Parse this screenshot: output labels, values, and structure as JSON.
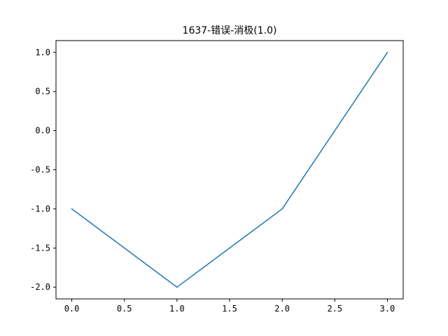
{
  "chart_data": {
    "type": "line",
    "title": "1637-错误-消极(1.0)",
    "xlabel": "",
    "ylabel": "",
    "x": [
      0,
      1,
      2,
      3
    ],
    "series": [
      {
        "values": [
          -1,
          -2,
          -1,
          1
        ],
        "color": "#1f77b4"
      }
    ],
    "xlim": [
      -0.15,
      3.15
    ],
    "ylim": [
      -2.15,
      1.15
    ],
    "x_ticks": [
      0.0,
      0.5,
      1.0,
      1.5,
      2.0,
      2.5,
      3.0
    ],
    "x_tick_labels": [
      "0.0",
      "0.5",
      "1.0",
      "1.5",
      "2.0",
      "2.5",
      "3.0"
    ],
    "y_ticks": [
      1.0,
      0.5,
      0.0,
      -0.5,
      -1.0,
      -1.5,
      -2.0
    ],
    "y_tick_labels": [
      "1.0",
      "0.5",
      "0.0",
      "-0.5",
      "-1.0",
      "-1.5",
      "-2.0"
    ],
    "grid": false,
    "legend": "none"
  }
}
